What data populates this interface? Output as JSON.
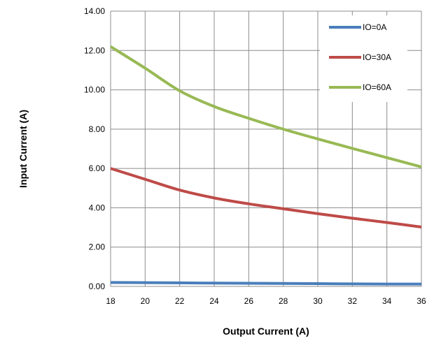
{
  "chart_data": {
    "type": "line",
    "title": "",
    "xlabel": "Output Current (A)",
    "ylabel": "Input Current (A)",
    "xlim": [
      18,
      36
    ],
    "ylim": [
      0,
      14
    ],
    "xticks": [
      "18",
      "20",
      "22",
      "24",
      "26",
      "28",
      "30",
      "32",
      "34",
      "36"
    ],
    "yticks": [
      "0.00",
      "2.00",
      "4.00",
      "6.00",
      "8.00",
      "10.00",
      "12.00",
      "14.00"
    ],
    "grid": true,
    "legend_position": "top-right",
    "x": [
      18,
      20,
      22,
      24,
      26,
      28,
      30,
      32,
      34,
      36
    ],
    "series": [
      {
        "name": "IO=0A",
        "color": "#4a7ebb",
        "values": [
          0.2,
          0.19,
          0.18,
          0.17,
          0.16,
          0.15,
          0.14,
          0.13,
          0.12,
          0.12
        ]
      },
      {
        "name": "IO=30A",
        "color": "#be4b48",
        "values": [
          6.0,
          5.45,
          4.9,
          4.5,
          4.2,
          3.95,
          3.7,
          3.47,
          3.25,
          3.02
        ]
      },
      {
        "name": "IO=60A",
        "color": "#98b954",
        "values": [
          12.2,
          11.1,
          9.95,
          9.15,
          8.55,
          8.0,
          7.5,
          7.02,
          6.55,
          6.08
        ]
      }
    ]
  }
}
